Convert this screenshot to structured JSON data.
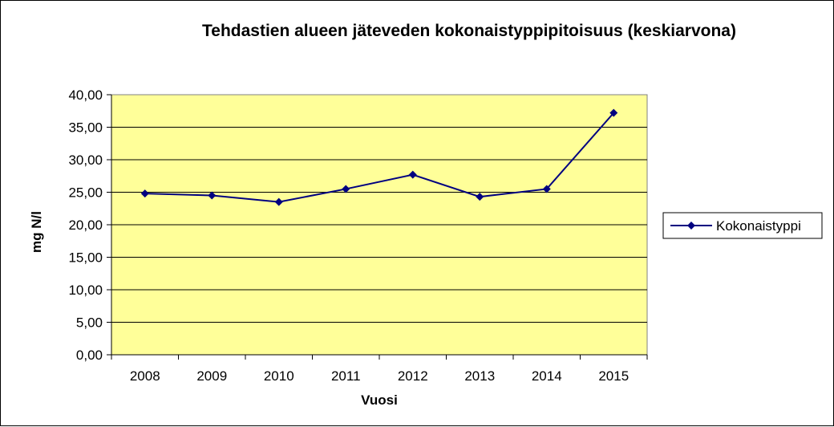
{
  "chart_data": {
    "type": "line",
    "title": "Tehdastien alueen jäteveden kokonaistyppipitoisuus  (keskiarvona)",
    "xlabel": "Vuosi",
    "ylabel": "mg N/l",
    "categories": [
      "2008",
      "2009",
      "2010",
      "2011",
      "2012",
      "2013",
      "2014",
      "2015"
    ],
    "series": [
      {
        "name": "Kokonaistyppi",
        "values": [
          24.8,
          24.5,
          23.5,
          25.5,
          27.7,
          24.3,
          25.5,
          37.2
        ]
      }
    ],
    "ylim": [
      0,
      40
    ],
    "y_ticks": [
      "0,00",
      "5,00",
      "10,00",
      "15,00",
      "20,00",
      "25,00",
      "30,00",
      "35,00",
      "40,00"
    ],
    "grid": true,
    "legend_position": "right",
    "colors": {
      "plot_background": "#FFFF99",
      "series_line": "#000080",
      "gridline": "#000000",
      "plot_border": "#808080"
    },
    "marker": "diamond-icon"
  }
}
